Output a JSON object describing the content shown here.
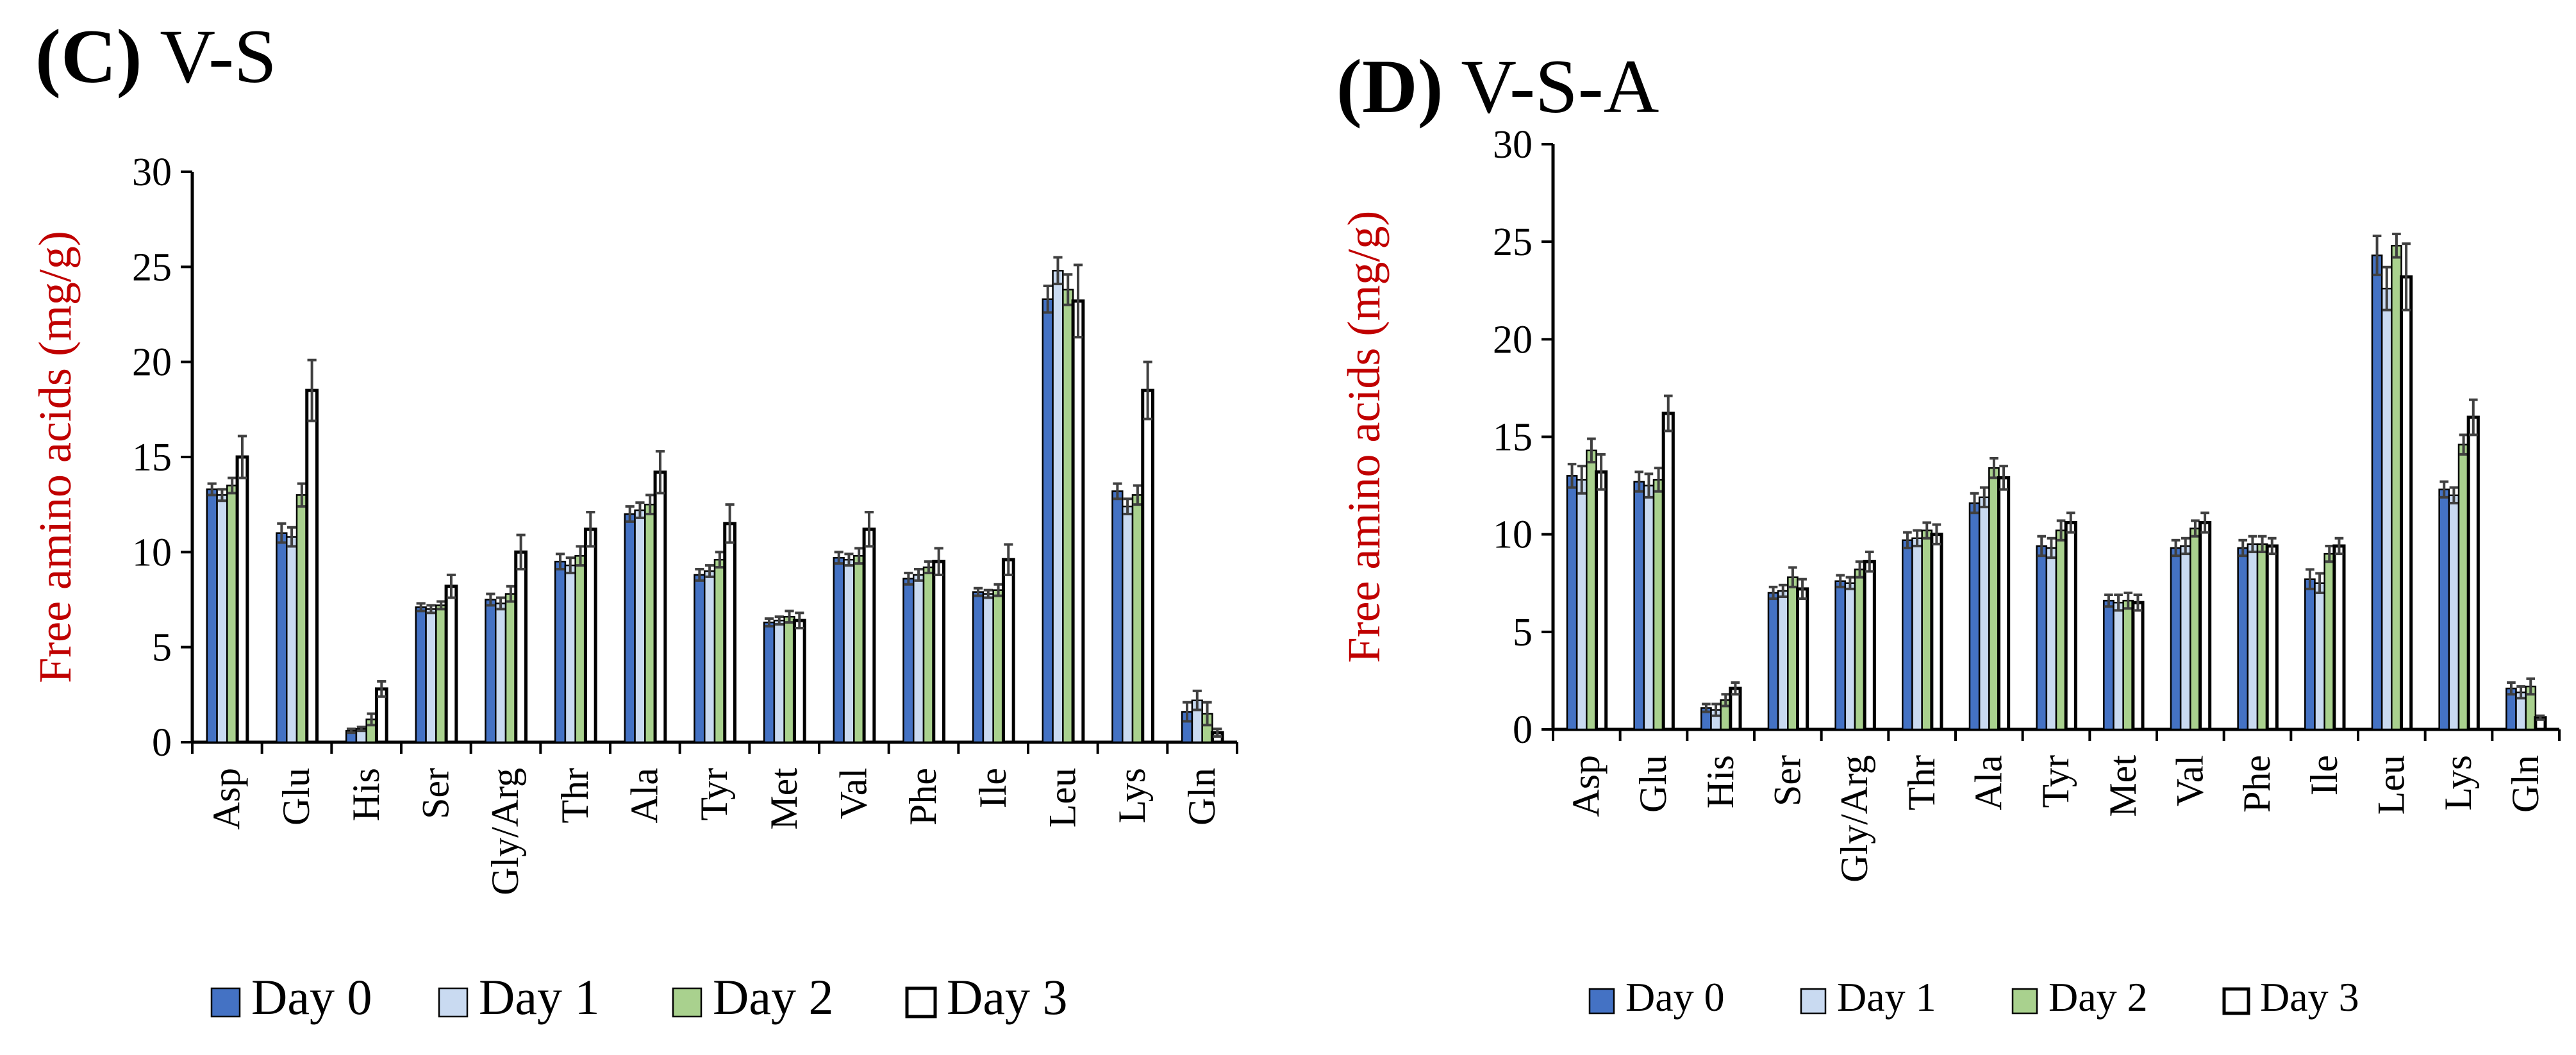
{
  "figure": {
    "legend_labels": [
      "Day 0",
      "Day 1",
      "Day 2",
      "Day 3"
    ],
    "colors": {
      "day0": "#4472c4",
      "day1": "#c9daf1",
      "day2": "#a9d18e",
      "day3": "#ffffff",
      "axis": "#000000",
      "ylabel": "#c00000",
      "errorbar": "#404040"
    }
  },
  "chart_data": [
    {
      "type": "bar",
      "panel_letter": "(C)",
      "panel_name": "V-S",
      "title": "(C) V-S",
      "xlabel": "",
      "ylabel": "Free amino acids (mg/g)",
      "ylim": [
        0,
        30
      ],
      "yticks": [
        "0",
        "5",
        "10",
        "15",
        "20",
        "25",
        "30"
      ],
      "grid": false,
      "legend_position": "bottom",
      "categories": [
        "Asp",
        "Glu",
        "His",
        "Ser",
        "Gly/Arg",
        "Thr",
        "Ala",
        "Tyr",
        "Met",
        "Val",
        "Phe",
        "Ile",
        "Leu",
        "Lys",
        "Gln"
      ],
      "series": [
        {
          "name": "Day 0",
          "values": [
            13.3,
            11.0,
            0.6,
            7.1,
            7.5,
            9.5,
            12.0,
            8.8,
            6.3,
            9.7,
            8.6,
            7.9,
            23.3,
            13.2,
            1.6
          ]
        },
        {
          "name": "Day 1",
          "values": [
            13.0,
            10.8,
            0.7,
            7.0,
            7.3,
            9.3,
            12.2,
            9.0,
            6.4,
            9.6,
            8.8,
            7.8,
            24.8,
            12.4,
            2.2
          ]
        },
        {
          "name": "Day 2",
          "values": [
            13.5,
            13.0,
            1.2,
            7.2,
            7.8,
            9.8,
            12.5,
            9.6,
            6.6,
            9.8,
            9.2,
            8.0,
            23.8,
            13.0,
            1.5
          ]
        },
        {
          "name": "Day 3",
          "values": [
            15.0,
            18.5,
            2.8,
            8.2,
            10.0,
            11.2,
            14.2,
            11.5,
            6.4,
            11.2,
            9.5,
            9.6,
            23.2,
            18.5,
            0.5
          ]
        }
      ],
      "errors": [
        [
          0.3,
          0.5,
          0.1,
          0.2,
          0.3,
          0.4,
          0.4,
          0.3,
          0.2,
          0.3,
          0.3,
          0.2,
          0.7,
          0.4,
          0.5
        ],
        [
          0.3,
          0.5,
          0.1,
          0.2,
          0.3,
          0.4,
          0.4,
          0.3,
          0.2,
          0.3,
          0.3,
          0.2,
          0.7,
          0.4,
          0.5
        ],
        [
          0.4,
          0.6,
          0.3,
          0.2,
          0.4,
          0.5,
          0.5,
          0.4,
          0.3,
          0.4,
          0.3,
          0.3,
          0.8,
          0.5,
          0.6
        ],
        [
          1.1,
          1.6,
          0.4,
          0.6,
          0.9,
          0.9,
          1.1,
          1.0,
          0.4,
          0.9,
          0.7,
          0.8,
          1.9,
          1.5,
          0.2
        ]
      ]
    },
    {
      "type": "bar",
      "panel_letter": "(D)",
      "panel_name": "V-S-A",
      "title": "(D) V-S-A",
      "xlabel": "",
      "ylabel": "Free amino acids (mg/g)",
      "ylim": [
        0,
        30
      ],
      "yticks": [
        "0",
        "5",
        "10",
        "15",
        "20",
        "25",
        "30"
      ],
      "grid": false,
      "legend_position": "bottom",
      "categories": [
        "Asp",
        "Glu",
        "His",
        "Ser",
        "Gly/Arg",
        "Thr",
        "Ala",
        "Tyr",
        "Met",
        "Val",
        "Phe",
        "Ile",
        "Leu",
        "Lys",
        "Gln"
      ],
      "series": [
        {
          "name": "Day 0",
          "values": [
            13.0,
            12.7,
            1.1,
            7.0,
            7.6,
            9.7,
            11.6,
            9.4,
            6.6,
            9.3,
            9.3,
            7.7,
            24.3,
            12.3,
            2.1
          ]
        },
        {
          "name": "Day 1",
          "values": [
            12.8,
            12.5,
            1.0,
            7.1,
            7.5,
            9.8,
            11.9,
            9.3,
            6.5,
            9.4,
            9.5,
            7.5,
            22.6,
            12.0,
            1.9
          ]
        },
        {
          "name": "Day 2",
          "values": [
            14.3,
            12.8,
            1.5,
            7.8,
            8.2,
            10.2,
            13.4,
            10.2,
            6.6,
            10.3,
            9.5,
            9.0,
            24.8,
            14.6,
            2.2
          ]
        },
        {
          "name": "Day 3",
          "values": [
            13.2,
            16.2,
            2.1,
            7.2,
            8.6,
            10.0,
            12.9,
            10.6,
            6.5,
            10.6,
            9.4,
            9.4,
            23.2,
            16.0,
            0.6
          ]
        }
      ],
      "errors": [
        [
          0.6,
          0.5,
          0.2,
          0.3,
          0.3,
          0.4,
          0.5,
          0.5,
          0.3,
          0.4,
          0.4,
          0.5,
          1.0,
          0.4,
          0.3
        ],
        [
          0.7,
          0.6,
          0.3,
          0.3,
          0.3,
          0.4,
          0.5,
          0.5,
          0.4,
          0.4,
          0.4,
          0.5,
          1.1,
          0.4,
          0.3
        ],
        [
          0.6,
          0.6,
          0.3,
          0.5,
          0.4,
          0.4,
          0.5,
          0.5,
          0.4,
          0.4,
          0.4,
          0.4,
          0.6,
          0.5,
          0.4
        ],
        [
          0.9,
          0.9,
          0.3,
          0.5,
          0.5,
          0.5,
          0.6,
          0.5,
          0.4,
          0.5,
          0.4,
          0.4,
          1.7,
          0.9,
          0.1
        ]
      ]
    }
  ]
}
